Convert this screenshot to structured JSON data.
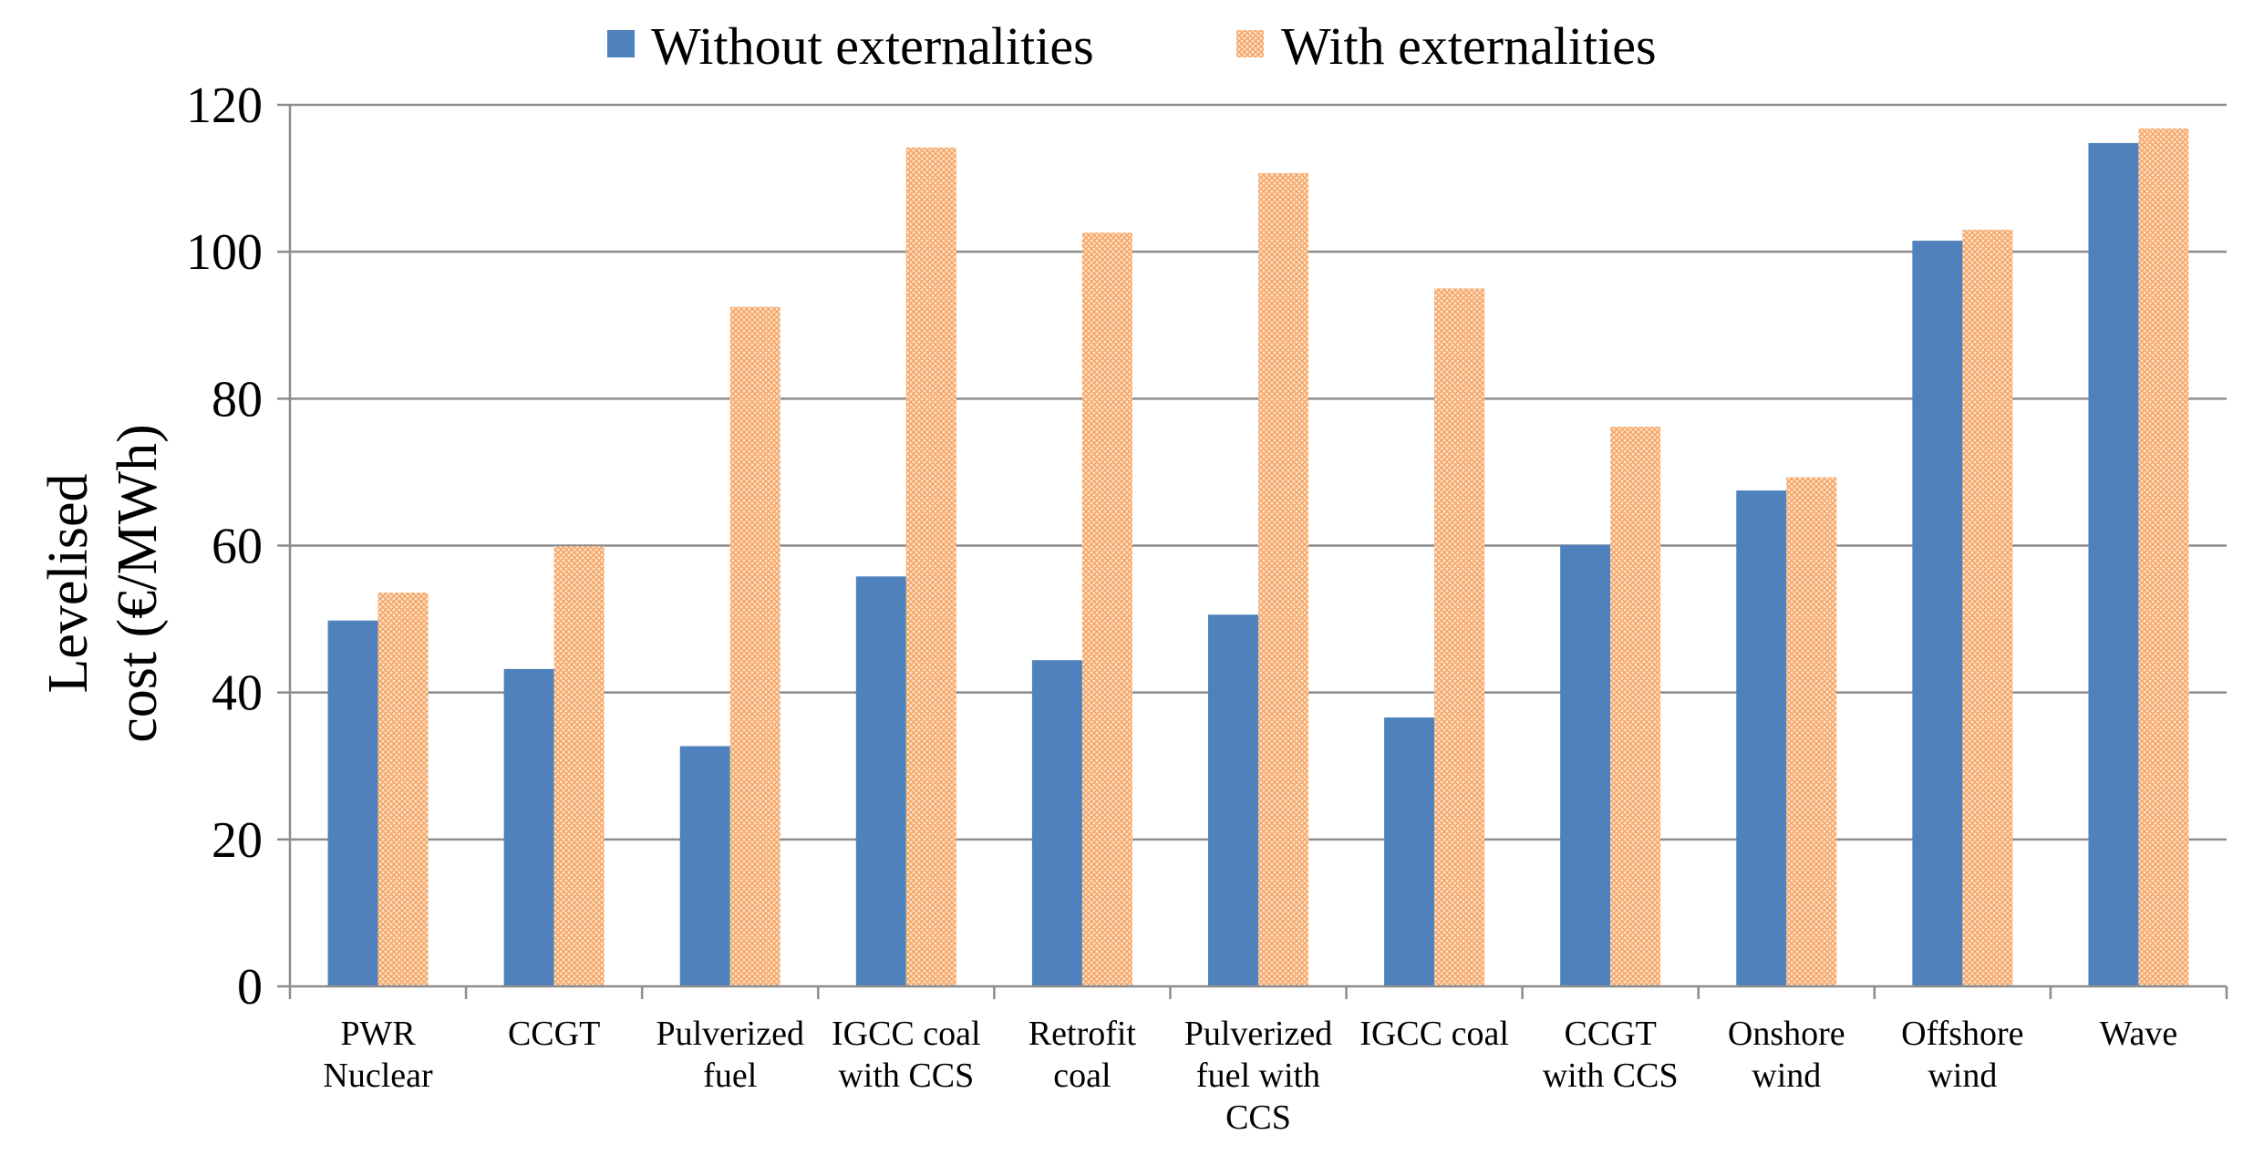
{
  "chart_data": {
    "type": "bar",
    "title": "",
    "xlabel": "",
    "ylabel": "Levelised cost (€/MWh)",
    "ylabel_lines": [
      "Levelised",
      "cost (€/MWh)"
    ],
    "ylim": [
      0,
      120
    ],
    "yticks": [
      0,
      20,
      40,
      60,
      80,
      100,
      120
    ],
    "grid": true,
    "legend_position": "top-center",
    "categories": [
      [
        "PWR",
        "Nuclear"
      ],
      [
        "CCGT"
      ],
      [
        "Pulverized",
        "fuel"
      ],
      [
        "IGCC coal",
        "with CCS"
      ],
      [
        "Retrofit",
        "coal"
      ],
      [
        "Pulverized",
        "fuel with",
        "CCS"
      ],
      [
        "IGCC coal"
      ],
      [
        "CCGT",
        "with CCS"
      ],
      [
        "Onshore",
        "wind"
      ],
      [
        "Offshore",
        "wind"
      ],
      [
        "Wave"
      ]
    ],
    "series": [
      {
        "name": "Without externalities",
        "color": "#4f81bd",
        "values": [
          49.8,
          43.2,
          32.7,
          55.8,
          44.4,
          50.6,
          36.6,
          60.1,
          67.5,
          101.5,
          114.8
        ]
      },
      {
        "name": "With externalities",
        "color": "#fac090",
        "values": [
          53.6,
          59.9,
          92.5,
          114.2,
          102.6,
          110.7,
          95.0,
          76.2,
          69.3,
          103.0,
          116.8
        ]
      }
    ]
  }
}
